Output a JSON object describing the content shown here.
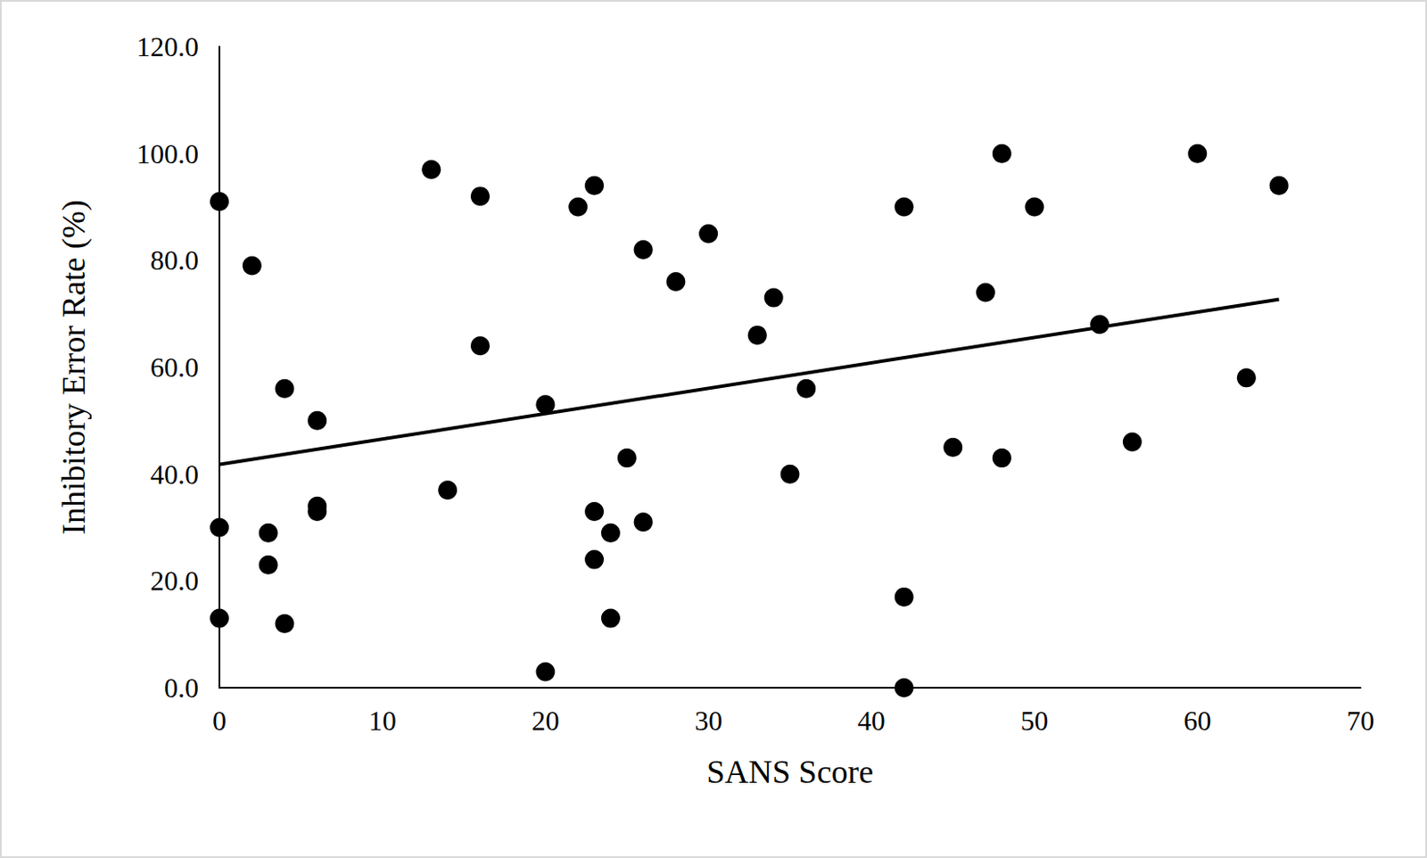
{
  "chart_data": {
    "type": "scatter",
    "x_label": "SANS Score",
    "y_label": "Inhibitory Error Rate (%)",
    "xlim": [
      0,
      70
    ],
    "xticks": [
      0,
      10,
      20,
      30,
      40,
      50,
      60,
      70
    ],
    "ylim": [
      0,
      120
    ],
    "yticks": [
      {
        "value": 0,
        "label": "0.0"
      },
      {
        "value": 20,
        "label": "20.0"
      },
      {
        "value": 40,
        "label": "40.0"
      },
      {
        "value": 60,
        "label": "60.0"
      },
      {
        "value": 80,
        "label": "80.0"
      },
      {
        "value": 100,
        "label": "100.0"
      },
      {
        "value": 120,
        "label": "120.0"
      }
    ],
    "grid": false,
    "series": [
      {
        "type": "scatter",
        "color": "#000000",
        "marker": "circle",
        "x": [
          0,
          2,
          0,
          0,
          3,
          3,
          4,
          4,
          6,
          6,
          6,
          13,
          14,
          16,
          16,
          20,
          20,
          22,
          23,
          23,
          23,
          24,
          24,
          25,
          26,
          26,
          28,
          30,
          33,
          34,
          35,
          36,
          42,
          42,
          42,
          45,
          47,
          48,
          48,
          50,
          54,
          56,
          60,
          63,
          65
        ],
        "values": [
          91,
          79,
          30,
          13,
          29,
          23,
          56,
          12,
          50,
          34,
          33,
          97,
          37,
          92,
          64,
          53,
          3,
          90,
          94,
          33,
          24,
          29,
          13,
          43,
          82,
          31,
          76,
          85,
          66,
          73,
          40,
          56,
          90,
          17,
          0,
          45,
          74,
          100,
          43,
          90,
          68,
          46,
          100,
          58,
          94
        ]
      },
      {
        "type": "line",
        "color": "#000000",
        "line_style": "solid",
        "x": [
          0,
          65
        ],
        "values": [
          41.8,
          72.7
        ]
      }
    ]
  }
}
